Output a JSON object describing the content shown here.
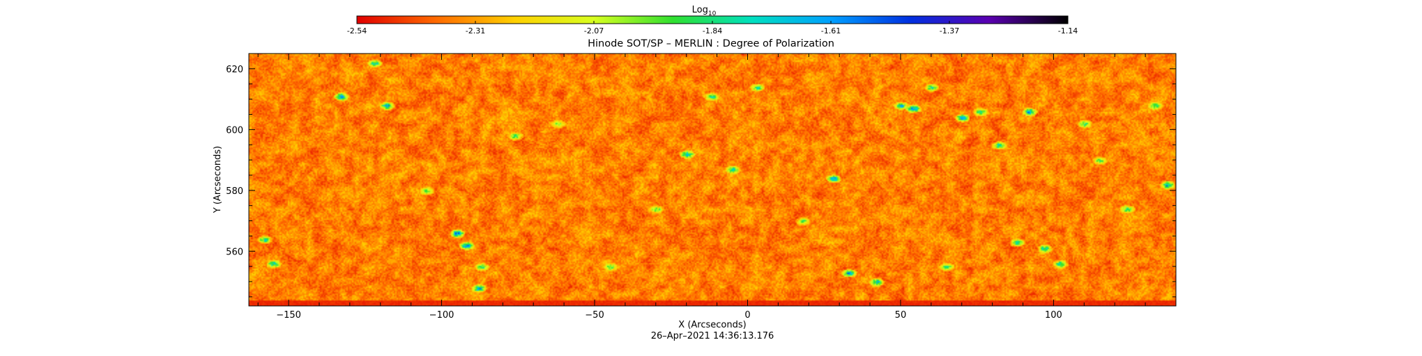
{
  "chart_data": {
    "type": "heatmap",
    "title": "Hinode SOT/SP – MERLIN : Degree of Polarization",
    "xlabel": "X (Arcseconds)",
    "ylabel": "Y (Arcseconds)",
    "timestamp": "26–Apr–2021 14:36:13.176",
    "xlim": [
      -163,
      140
    ],
    "ylim": [
      542,
      625
    ],
    "x_ticks": [
      -150,
      -100,
      -50,
      0,
      50,
      100
    ],
    "y_ticks": [
      560,
      580,
      600,
      620
    ],
    "colorbar": {
      "label_base": "Log",
      "label_sub": "10",
      "min": -2.54,
      "max": -1.14,
      "ticks": [
        "-2.54",
        "-2.31",
        "-2.07",
        "-1.84",
        "-1.61",
        "-1.37",
        "-1.14"
      ],
      "colormap": [
        "#e00000",
        "#ff6a00",
        "#ffd000",
        "#d8ff20",
        "#30e030",
        "#00e0c0",
        "#00a0ff",
        "#0030e0",
        "#5a00b0",
        "#000000"
      ]
    },
    "field": {
      "background_level_range": [
        -2.5,
        -2.2
      ],
      "features": [
        {
          "x": -133,
          "y": 611,
          "v": -1.55
        },
        {
          "x": -122,
          "y": 622,
          "v": -1.7
        },
        {
          "x": -118,
          "y": 608,
          "v": -1.5
        },
        {
          "x": -95,
          "y": 566,
          "v": -1.45
        },
        {
          "x": -92,
          "y": 562,
          "v": -1.5
        },
        {
          "x": -87,
          "y": 555,
          "v": -1.75
        },
        {
          "x": -88,
          "y": 548,
          "v": -1.55
        },
        {
          "x": -158,
          "y": 564,
          "v": -1.7
        },
        {
          "x": -155,
          "y": 556,
          "v": -1.7
        },
        {
          "x": -76,
          "y": 598,
          "v": -1.8
        },
        {
          "x": -62,
          "y": 602,
          "v": -1.85
        },
        {
          "x": -20,
          "y": 592,
          "v": -1.6
        },
        {
          "x": -12,
          "y": 611,
          "v": -1.75
        },
        {
          "x": -5,
          "y": 587,
          "v": -1.7
        },
        {
          "x": 3,
          "y": 614,
          "v": -1.75
        },
        {
          "x": 28,
          "y": 584,
          "v": -1.55
        },
        {
          "x": 33,
          "y": 553,
          "v": -1.5
        },
        {
          "x": 42,
          "y": 550,
          "v": -1.6
        },
        {
          "x": 50,
          "y": 608,
          "v": -1.6
        },
        {
          "x": 54,
          "y": 607,
          "v": -1.45
        },
        {
          "x": 60,
          "y": 614,
          "v": -1.7
        },
        {
          "x": 70,
          "y": 604,
          "v": -1.55
        },
        {
          "x": 76,
          "y": 606,
          "v": -1.75
        },
        {
          "x": 82,
          "y": 595,
          "v": -1.7
        },
        {
          "x": 92,
          "y": 606,
          "v": -1.5
        },
        {
          "x": 88,
          "y": 563,
          "v": -1.75
        },
        {
          "x": 97,
          "y": 561,
          "v": -1.7
        },
        {
          "x": 102,
          "y": 556,
          "v": -1.75
        },
        {
          "x": 110,
          "y": 602,
          "v": -1.8
        },
        {
          "x": 124,
          "y": 574,
          "v": -1.8
        },
        {
          "x": 137,
          "y": 582,
          "v": -1.5
        },
        {
          "x": 133,
          "y": 608,
          "v": -1.8
        },
        {
          "x": -30,
          "y": 574,
          "v": -1.85
        },
        {
          "x": 18,
          "y": 570,
          "v": -1.85
        },
        {
          "x": -45,
          "y": 555,
          "v": -1.85
        },
        {
          "x": 65,
          "y": 555,
          "v": -1.8
        },
        {
          "x": -105,
          "y": 580,
          "v": -1.85
        },
        {
          "x": 115,
          "y": 590,
          "v": -1.85
        }
      ]
    }
  }
}
